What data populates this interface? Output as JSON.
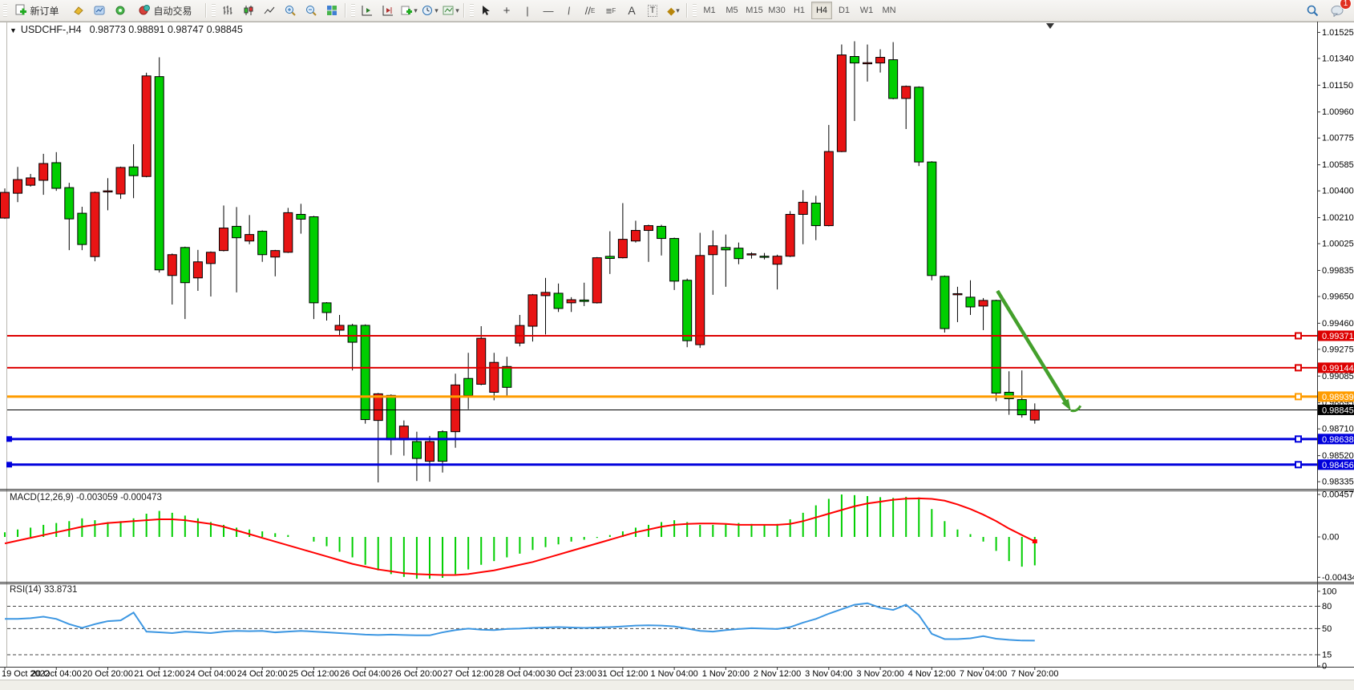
{
  "toolbar": {
    "new_order": "新订单",
    "auto_trading": "自动交易",
    "timeframes": [
      "M1",
      "M5",
      "M15",
      "M30",
      "H1",
      "H4",
      "D1",
      "W1",
      "MN"
    ],
    "active_timeframe": "H4",
    "badge": "1"
  },
  "chart": {
    "symbol": "USDCHF-,H4",
    "ohlc": "0.98773 0.98891 0.98747 0.98845"
  },
  "chart_data": {
    "type": "candlestick",
    "title": "USDCHF-,H4",
    "last_ohlc": {
      "open": 0.98773,
      "high": 0.98891,
      "low": 0.98747,
      "close": 0.98845
    },
    "colors": {
      "bull": "#00CE00",
      "bear": "#E81414",
      "wick": "#000000",
      "macd_hist": "#00CE00",
      "macd_signal": "#FF0000",
      "rsi": "#3D97E2",
      "arrow": "#44A02C",
      "line_red": "#DD0000",
      "line_orange": "#FF9C00",
      "line_blue": "#0000DC",
      "line_black": "#000000"
    },
    "x_labels": [
      "19 Oct 2022",
      "20 Oct 04:00",
      "20 Oct 20:00",
      "21 Oct 12:00",
      "24 Oct 04:00",
      "24 Oct 20:00",
      "25 Oct 12:00",
      "26 Oct 04:00",
      "26 Oct 20:00",
      "27 Oct 12:00",
      "28 Oct 04:00",
      "30 Oct 23:00",
      "31 Oct 12:00",
      "1 Nov 04:00",
      "1 Nov 20:00",
      "2 Nov 12:00",
      "3 Nov 04:00",
      "3 Nov 20:00",
      "4 Nov 12:00",
      "7 Nov 04:00",
      "7 Nov 20:00"
    ],
    "candles_per_label": 4,
    "price_ticks": [
      "1.01525",
      "1.01340",
      "1.01150",
      "1.00960",
      "1.00775",
      "1.00585",
      "1.00400",
      "1.00210",
      "1.00025",
      "0.99835",
      "0.99650",
      "0.99460",
      "0.99275",
      "0.99085",
      "0.98895",
      "0.98710",
      "0.98520",
      "0.98335"
    ],
    "hlines": [
      {
        "price": 0.99371,
        "label": "0.99371",
        "color": "#DD0000",
        "width": 2,
        "left_handle": false
      },
      {
        "price": 0.99144,
        "label": "0.99144",
        "color": "#DD0000",
        "width": 2,
        "left_handle": false
      },
      {
        "price": 0.98939,
        "label": "0.98939",
        "color": "#FF9C00",
        "width": 3,
        "left_handle": false
      },
      {
        "price": 0.98638,
        "label": "0.98638",
        "color": "#0000DC",
        "width": 3,
        "left_handle": true
      },
      {
        "price": 0.98456,
        "label": "0.98456",
        "color": "#0000DC",
        "width": 3,
        "left_handle": true
      }
    ],
    "current_price": {
      "value": 0.98845,
      "label": "0.98845",
      "color": "#000000"
    },
    "trend_arrow": {
      "from_index": 77.1,
      "from_price": 0.9969,
      "to_index": 82.8,
      "to_price": 0.9884
    },
    "candles": [
      [
        1.00389,
        1.00417,
        1.00201,
        1.00207,
        "r"
      ],
      [
        1.0048,
        1.0057,
        1.0032,
        1.00383,
        "r"
      ],
      [
        1.00492,
        1.0052,
        1.0043,
        1.0044,
        "r"
      ],
      [
        1.00594,
        1.00663,
        1.00372,
        1.00475,
        "r"
      ],
      [
        1.00418,
        1.00675,
        1.004,
        1.006,
        "g"
      ],
      [
        1.00201,
        1.00457,
        0.99979,
        1.00423,
        "g"
      ],
      [
        1.00019,
        1.00287,
        0.99979,
        1.00241,
        "g"
      ],
      [
        1.00389,
        1.00395,
        0.999,
        0.99933,
        "r"
      ],
      [
        1.004,
        1.0049,
        1.00262,
        1.00392,
        "r"
      ],
      [
        1.00566,
        1.00572,
        1.00343,
        1.00378,
        "r"
      ],
      [
        1.00508,
        1.00731,
        1.00348,
        1.0057,
        "g"
      ],
      [
        1.01216,
        1.01239,
        1.00496,
        1.00502,
        "r"
      ],
      [
        0.99839,
        1.01348,
        0.9982,
        1.01211,
        "g"
      ],
      [
        0.99947,
        0.99955,
        0.99593,
        0.99799,
        "r"
      ],
      [
        0.99748,
        1.00004,
        0.9949,
        0.99998,
        "g"
      ],
      [
        0.99896,
        0.99981,
        0.9969,
        0.99782,
        "r"
      ],
      [
        0.99964,
        0.9997,
        0.9965,
        0.99884,
        "r"
      ],
      [
        1.00136,
        1.00296,
        0.9997,
        0.99976,
        "r"
      ],
      [
        1.00067,
        1.00285,
        0.99679,
        1.00148,
        "g"
      ],
      [
        1.0009,
        1.00228,
        1.00021,
        1.00044,
        "r"
      ],
      [
        0.99947,
        1.00119,
        0.99896,
        1.00113,
        "g"
      ],
      [
        0.99976,
        0.99981,
        0.99793,
        0.9993,
        "r"
      ],
      [
        1.00245,
        1.00279,
        0.99959,
        0.99964,
        "r"
      ],
      [
        1.00199,
        1.00308,
        1.00096,
        1.00233,
        "g"
      ],
      [
        0.99605,
        1.00222,
        0.9949,
        1.00216,
        "g"
      ],
      [
        0.99536,
        0.9961,
        0.99479,
        0.99605,
        "g"
      ],
      [
        0.99445,
        0.99519,
        0.99365,
        0.99411,
        "r"
      ],
      [
        0.99325,
        0.99456,
        0.99125,
        0.99445,
        "g"
      ],
      [
        0.98776,
        0.99452,
        0.98747,
        0.99445,
        "g"
      ],
      [
        0.98959,
        0.98965,
        0.9833,
        0.9877,
        "r"
      ],
      [
        0.98633,
        0.98955,
        0.98525,
        0.98948,
        "g"
      ],
      [
        0.9873,
        0.9877,
        0.9852,
        0.98633,
        "r"
      ],
      [
        0.985,
        0.9869,
        0.9834,
        0.9862,
        "g"
      ],
      [
        0.9862,
        0.9866,
        0.98335,
        0.9848,
        "r"
      ],
      [
        0.9848,
        0.987,
        0.984,
        0.9869,
        "g"
      ],
      [
        0.99022,
        0.99102,
        0.98576,
        0.9869,
        "r"
      ],
      [
        0.98947,
        0.9925,
        0.9885,
        0.99068,
        "g"
      ],
      [
        0.99353,
        0.99439,
        0.9902,
        0.99027,
        "r"
      ],
      [
        0.99182,
        0.9925,
        0.98913,
        0.9897,
        "r"
      ],
      [
        0.99005,
        0.99222,
        0.98936,
        0.99153,
        "g"
      ],
      [
        0.99444,
        0.99519,
        0.99296,
        0.99319,
        "r"
      ],
      [
        0.99662,
        0.99668,
        0.9933,
        0.99439,
        "r"
      ],
      [
        0.99679,
        0.99782,
        0.9938,
        0.99656,
        "r"
      ],
      [
        0.99565,
        0.99742,
        0.9954,
        0.99673,
        "g"
      ],
      [
        0.99627,
        0.99645,
        0.9954,
        0.99605,
        "r"
      ],
      [
        0.99615,
        0.99748,
        0.99582,
        0.99625,
        "g"
      ],
      [
        0.99925,
        0.9993,
        0.996,
        0.99605,
        "r"
      ],
      [
        0.9992,
        1.00113,
        0.9981,
        0.99935,
        "g"
      ],
      [
        1.00056,
        1.00313,
        0.9992,
        0.99925,
        "r"
      ],
      [
        1.00119,
        1.00188,
        1.00033,
        1.00044,
        "r"
      ],
      [
        1.00153,
        1.0016,
        0.99896,
        1.00119,
        "r"
      ],
      [
        1.00062,
        1.00159,
        0.99941,
        1.00148,
        "g"
      ],
      [
        0.99759,
        1.00068,
        0.99696,
        1.00062,
        "g"
      ],
      [
        0.99336,
        0.99777,
        0.9929,
        0.99765,
        "g"
      ],
      [
        0.99941,
        1.00102,
        0.99285,
        0.99308,
        "r"
      ],
      [
        1.0001,
        1.00119,
        0.99662,
        0.99947,
        "r"
      ],
      [
        0.99981,
        1.0009,
        0.99719,
        0.99998,
        "g"
      ],
      [
        0.99919,
        1.00033,
        0.99879,
        0.99993,
        "g"
      ],
      [
        0.99953,
        0.99964,
        0.99919,
        0.99947,
        "r"
      ],
      [
        0.9993,
        0.99959,
        0.99913,
        0.99936,
        "g"
      ],
      [
        0.99936,
        0.99947,
        0.997,
        0.99879,
        "r"
      ],
      [
        1.00233,
        1.00256,
        0.9993,
        0.99936,
        "r"
      ],
      [
        1.00319,
        1.00405,
        1.00021,
        1.00233,
        "r"
      ],
      [
        1.00153,
        1.00365,
        1.0005,
        1.00313,
        "g"
      ],
      [
        1.00679,
        1.00868,
        1.00148,
        1.00153,
        "r"
      ],
      [
        1.01365,
        1.01439,
        1.00675,
        1.00679,
        "r"
      ],
      [
        1.01308,
        1.01462,
        1.00896,
        1.01354,
        "g"
      ],
      [
        1.0131,
        1.01439,
        1.01176,
        1.01305,
        "r"
      ],
      [
        1.01348,
        1.01405,
        1.0124,
        1.01308,
        "r"
      ],
      [
        1.01056,
        1.01456,
        1.0105,
        1.01331,
        "g"
      ],
      [
        1.01142,
        1.01148,
        1.00839,
        1.01056,
        "r"
      ],
      [
        1.00605,
        1.01142,
        1.00576,
        1.01136,
        "g"
      ],
      [
        0.99799,
        1.00611,
        0.99765,
        1.00605,
        "g"
      ],
      [
        0.99422,
        0.99799,
        0.99394,
        0.99793,
        "g"
      ],
      [
        0.9967,
        0.99719,
        0.99468,
        0.99665,
        "r"
      ],
      [
        0.99576,
        0.99765,
        0.99519,
        0.99645,
        "g"
      ],
      [
        0.99622,
        0.99639,
        0.99411,
        0.99582,
        "r"
      ],
      [
        0.98964,
        0.99627,
        0.98907,
        0.99622,
        "g"
      ],
      [
        0.98924,
        0.99119,
        0.9881,
        0.9897,
        "g"
      ],
      [
        0.9881,
        0.99125,
        0.9879,
        0.98918,
        "g"
      ],
      [
        0.98773,
        0.98891,
        0.98747,
        0.98845,
        "r"
      ]
    ],
    "macd": {
      "label": "MACD(12,26,9)",
      "values_label": "-0.003059 -0.000473",
      "axis_ticks": [
        {
          "t": "0.004572",
          "v": 0.004572
        },
        {
          "t": "0.00",
          "v": 0
        },
        {
          "t": "-0.004341",
          "v": -0.004341
        }
      ],
      "histogram": [
        0.0005,
        0.0008,
        0.001,
        0.0013,
        0.0015,
        0.0017,
        0.002,
        0.0018,
        0.0016,
        0.0017,
        0.002,
        0.0025,
        0.0028,
        0.0026,
        0.0023,
        0.002,
        0.0016,
        0.0013,
        0.001,
        0.0008,
        0.0006,
        0.0004,
        0.0002,
        0.0,
        -0.0005,
        -0.001,
        -0.0016,
        -0.0022,
        -0.003,
        -0.0036,
        -0.004,
        -0.0043,
        -0.0045,
        -0.0045,
        -0.0044,
        -0.004,
        -0.0035,
        -0.003,
        -0.0026,
        -0.0022,
        -0.0018,
        -0.0014,
        -0.0011,
        -0.0008,
        -0.0005,
        -0.0003,
        -0.0001,
        0.0002,
        0.0006,
        0.001,
        0.0013,
        0.0016,
        0.0018,
        0.0016,
        0.0013,
        0.0013,
        0.0014,
        0.0015,
        0.0014,
        0.0013,
        0.0014,
        0.0019,
        0.0026,
        0.0034,
        0.0041,
        0.00457,
        0.0045,
        0.0044,
        0.00428,
        0.0042,
        0.00432,
        0.00425,
        0.003,
        0.0017,
        0.0008,
        0.0003,
        -0.0005,
        -0.0015,
        -0.0026,
        -0.0032,
        -0.003059
      ],
      "signal": [
        -0.0007,
        -0.0004,
        -0.0001,
        0.0002,
        0.0005,
        0.0008,
        0.0011,
        0.0013,
        0.0015,
        0.0016,
        0.0017,
        0.0018,
        0.0019,
        0.0019,
        0.0018,
        0.0016,
        0.0014,
        0.0011,
        0.0007,
        0.0003,
        -0.0001,
        -0.0005,
        -0.0009,
        -0.0013,
        -0.0017,
        -0.0021,
        -0.0025,
        -0.0029,
        -0.0032,
        -0.0035,
        -0.0037,
        -0.0039,
        -0.004,
        -0.00405,
        -0.0041,
        -0.0041,
        -0.004,
        -0.0038,
        -0.0036,
        -0.0033,
        -0.003,
        -0.0027,
        -0.0023,
        -0.0019,
        -0.0015,
        -0.0011,
        -0.0007,
        -0.0003,
        0.0001,
        0.0005,
        0.0008,
        0.0011,
        0.0013,
        0.0014,
        0.00145,
        0.00145,
        0.0014,
        0.0013,
        0.0013,
        0.0013,
        0.0013,
        0.0014,
        0.0017,
        0.0021,
        0.0025,
        0.0029,
        0.0033,
        0.0036,
        0.0038,
        0.004,
        0.00412,
        0.00415,
        0.0041,
        0.0039,
        0.0035,
        0.003,
        0.0024,
        0.0017,
        0.0009,
        0.0002,
        -0.000473
      ]
    },
    "rsi": {
      "label": "RSI(14)",
      "value_label": "33.8731",
      "axis_ticks": [
        {
          "t": "100",
          "v": 100
        },
        {
          "t": "80",
          "v": 80
        },
        {
          "t": "50",
          "v": 50
        },
        {
          "t": "15",
          "v": 15
        },
        {
          "t": "0",
          "v": 0
        }
      ],
      "levels": [
        80,
        50,
        15
      ],
      "values": [
        63,
        63,
        64,
        66,
        63,
        56,
        51,
        56,
        60,
        61,
        71.5,
        46,
        45,
        44,
        46,
        45,
        44,
        46,
        47,
        46.5,
        47,
        45,
        46,
        47,
        46,
        45,
        44,
        43,
        42,
        41.5,
        42,
        41.5,
        41,
        41,
        45,
        48,
        50,
        48.5,
        48,
        49.5,
        50,
        51,
        51.5,
        52,
        51.5,
        51,
        51.5,
        52,
        53,
        54,
        54.5,
        54,
        53,
        50,
        47,
        46,
        48,
        49.5,
        50.5,
        50,
        49.5,
        52,
        58,
        63,
        70,
        76,
        82,
        84,
        78,
        75,
        82,
        68,
        43,
        36,
        36,
        37,
        40,
        36.5,
        35,
        34,
        33.87
      ]
    }
  }
}
